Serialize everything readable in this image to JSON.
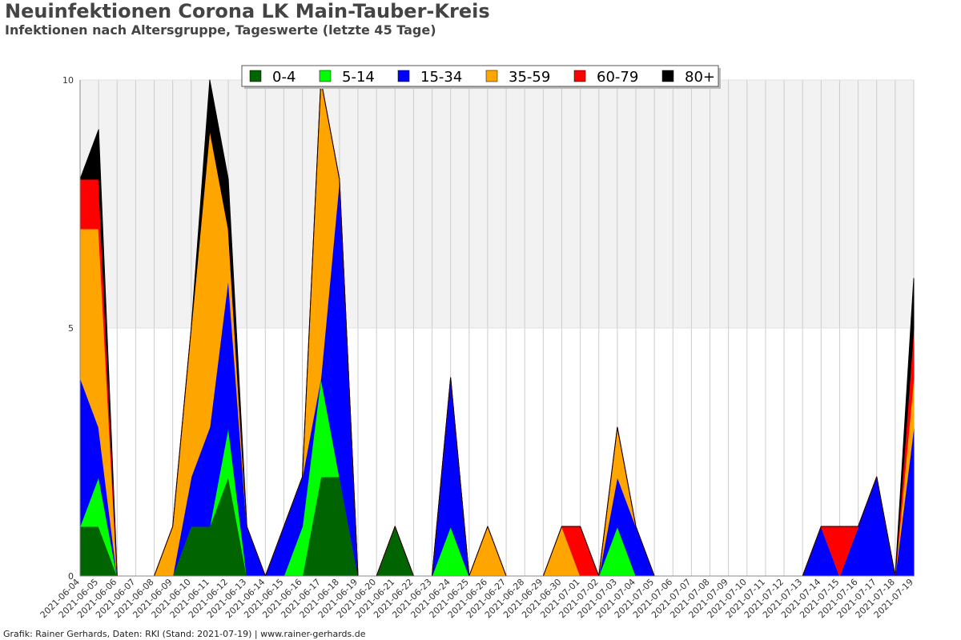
{
  "title": "Neuinfektionen Corona LK Main-Tauber-Kreis",
  "subtitle": "Infektionen nach Altersgruppe, Tageswerte (letzte 45 Tage)",
  "footer": "Grafik: Rainer Gerhards, Daten: RKI (Stand: 2021-07-19) | www.rainer-gerhards.de",
  "chart_data": {
    "type": "area",
    "stacked": true,
    "grid": true,
    "legend_position": "top",
    "ylim": [
      0,
      10
    ],
    "yticks": [
      0,
      5,
      10
    ],
    "x": [
      "2021-06-04",
      "2021-06-05",
      "2021-06-06",
      "2021-06-07",
      "2021-06-08",
      "2021-06-09",
      "2021-06-10",
      "2021-06-11",
      "2021-06-12",
      "2021-06-13",
      "2021-06-14",
      "2021-06-15",
      "2021-06-16",
      "2021-06-17",
      "2021-06-18",
      "2021-06-19",
      "2021-06-20",
      "2021-06-21",
      "2021-06-22",
      "2021-06-23",
      "2021-06-24",
      "2021-06-25",
      "2021-06-26",
      "2021-06-27",
      "2021-06-28",
      "2021-06-29",
      "2021-06-30",
      "2021-07-01",
      "2021-07-02",
      "2021-07-03",
      "2021-07-04",
      "2021-07-05",
      "2021-07-06",
      "2021-07-07",
      "2021-07-08",
      "2021-07-09",
      "2021-07-10",
      "2021-07-11",
      "2021-07-12",
      "2021-07-13",
      "2021-07-14",
      "2021-07-15",
      "2021-07-16",
      "2021-07-17",
      "2021-07-18",
      "2021-07-19"
    ],
    "series": [
      {
        "name": "0-4",
        "color": "#006400",
        "values": [
          1,
          1,
          0,
          0,
          0,
          0,
          1,
          1,
          2,
          0,
          0,
          0,
          0,
          2,
          2,
          0,
          0,
          1,
          0,
          0,
          0,
          0,
          0,
          0,
          0,
          0,
          0,
          0,
          0,
          0,
          0,
          0,
          0,
          0,
          0,
          0,
          0,
          0,
          0,
          0,
          0,
          0,
          0,
          0,
          0,
          0
        ]
      },
      {
        "name": "5-14",
        "color": "#00ff00",
        "values": [
          0,
          1,
          0,
          0,
          0,
          0,
          0,
          0,
          1,
          0,
          0,
          0,
          1,
          2,
          0,
          0,
          0,
          0,
          0,
          0,
          1,
          0,
          0,
          0,
          0,
          0,
          0,
          0,
          0,
          1,
          0,
          0,
          0,
          0,
          0,
          0,
          0,
          0,
          0,
          0,
          0,
          0,
          0,
          0,
          0,
          0
        ]
      },
      {
        "name": "15-34",
        "color": "#0000ff",
        "values": [
          3,
          1,
          0,
          0,
          0,
          0,
          1,
          2,
          3,
          1,
          0,
          1,
          1,
          0,
          6,
          0,
          0,
          0,
          0,
          0,
          3,
          0,
          0,
          0,
          0,
          0,
          0,
          0,
          0,
          1,
          1,
          0,
          0,
          0,
          0,
          0,
          0,
          0,
          0,
          0,
          1,
          0,
          1,
          2,
          0,
          3
        ]
      },
      {
        "name": "35-59",
        "color": "#ffa500",
        "values": [
          3,
          4,
          0,
          0,
          0,
          1,
          3,
          6,
          1,
          0,
          0,
          0,
          0,
          6,
          0,
          0,
          0,
          0,
          0,
          0,
          0,
          0,
          1,
          0,
          0,
          0,
          1,
          0,
          0,
          1,
          0,
          0,
          0,
          0,
          0,
          0,
          0,
          0,
          0,
          0,
          0,
          0,
          0,
          0,
          0,
          1
        ]
      },
      {
        "name": "60-79",
        "color": "#ff0000",
        "values": [
          1,
          1,
          0,
          0,
          0,
          0,
          0,
          0,
          0,
          0,
          0,
          0,
          0,
          0,
          0,
          0,
          0,
          0,
          0,
          0,
          0,
          0,
          0,
          0,
          0,
          0,
          0,
          1,
          0,
          0,
          0,
          0,
          0,
          0,
          0,
          0,
          0,
          0,
          0,
          0,
          0,
          1,
          0,
          0,
          0,
          1
        ]
      },
      {
        "name": "80+",
        "color": "#000000",
        "values": [
          0,
          1,
          0,
          0,
          0,
          0,
          0,
          1,
          1,
          0,
          0,
          0,
          0,
          0,
          0,
          0,
          0,
          0,
          0,
          0,
          0,
          0,
          0,
          0,
          0,
          0,
          0,
          0,
          0,
          0,
          0,
          0,
          0,
          0,
          0,
          0,
          0,
          0,
          0,
          0,
          0,
          0,
          0,
          0,
          0,
          1
        ]
      }
    ]
  }
}
